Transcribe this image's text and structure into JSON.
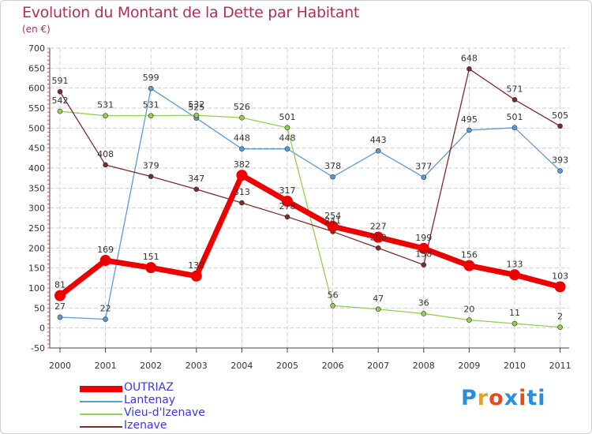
{
  "title": "Evolution du Montant de la Dette par Habitant",
  "subtitle": "(en €)",
  "logo": {
    "letters": [
      "P",
      "r",
      "o",
      "x",
      "i",
      "t",
      "i"
    ],
    "colors": [
      "#2a8fd8",
      "#e8a21a",
      "#e84a1a",
      "#2a8fd8",
      "#e84a1a",
      "#2a8fd8",
      "#2a8fd8"
    ]
  },
  "chart_data": {
    "type": "line",
    "x": [
      "2000",
      "2001",
      "2002",
      "2003",
      "2004",
      "2005",
      "2006",
      "2007",
      "2008",
      "2009",
      "2010",
      "2011"
    ],
    "ylim": [
      -50,
      700
    ],
    "yticks": [
      "-50",
      "0",
      "50",
      "100",
      "150",
      "200",
      "250",
      "300",
      "350",
      "400",
      "450",
      "500",
      "550",
      "600",
      "650",
      "700"
    ],
    "grid": true,
    "legend_position": "bottom-left",
    "series": [
      {
        "name": "OUTRIAZ",
        "color": "#ee0000",
        "values": [
          81,
          169,
          151,
          130,
          382,
          317,
          254,
          227,
          199,
          156,
          133,
          103
        ],
        "labels": [
          "81",
          "169",
          "151",
          "130",
          "382",
          "317",
          "254",
          "227",
          "199",
          "156",
          "133",
          "103"
        ]
      },
      {
        "name": "Lantenay",
        "color": "#5b9bd5",
        "values": [
          27,
          22,
          599,
          525,
          448,
          448,
          378,
          443,
          377,
          495,
          501,
          393
        ],
        "labels": [
          "27",
          "22",
          "599",
          "525",
          "448",
          "448",
          "378",
          "443",
          "377",
          "495",
          "501",
          "393"
        ]
      },
      {
        "name": "Vieu-d'Izenave",
        "color": "#92d050",
        "values": [
          542,
          531,
          531,
          532,
          526,
          501,
          56,
          47,
          36,
          20,
          11,
          2
        ],
        "labels": [
          "542",
          "531",
          "531",
          "532",
          "526",
          "501",
          "56",
          "47",
          "36",
          "20",
          "11",
          "2"
        ]
      },
      {
        "name": "Izenave",
        "color": "#7b2b2b",
        "values": [
          591,
          408,
          379,
          347,
          313,
          278,
          241,
          200,
          158,
          648,
          571,
          505
        ],
        "labels": [
          "591",
          "408",
          "379",
          "347",
          "313",
          "278",
          "241",
          "200",
          "158",
          "648",
          "571",
          "505"
        ]
      }
    ]
  }
}
